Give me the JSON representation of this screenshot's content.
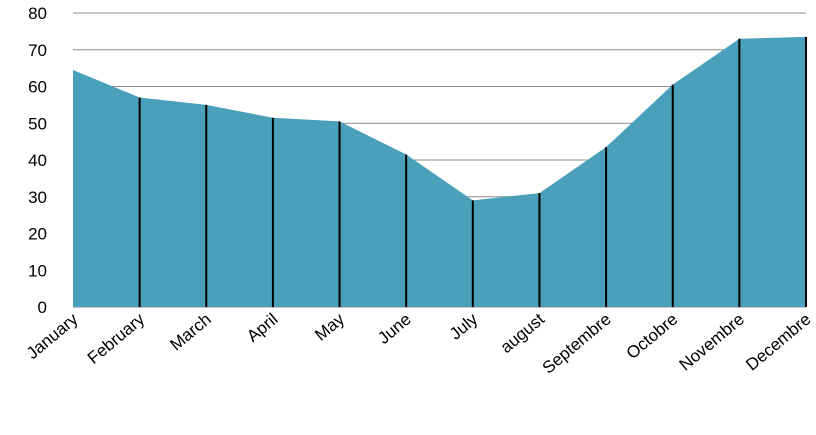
{
  "chart_data": {
    "type": "area",
    "categories": [
      "January",
      "February",
      "March",
      "April",
      "May",
      "June",
      "July",
      "august",
      "Septembre",
      "Octobre",
      "Novembre",
      "Decembre"
    ],
    "values": [
      64.5,
      57,
      55,
      51.5,
      50.5,
      41.5,
      29,
      31,
      43.5,
      60.5,
      73,
      73.5
    ],
    "color": "#4a9fba",
    "ylim": [
      0,
      80
    ],
    "yticks": [
      0,
      10,
      20,
      30,
      40,
      50,
      60,
      70,
      80
    ],
    "grid": true,
    "drop_lines": true
  }
}
